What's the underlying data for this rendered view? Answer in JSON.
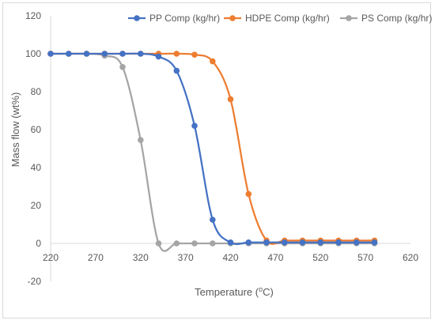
{
  "chart_data": {
    "type": "scatter",
    "title": "",
    "xlabel_main": "Temperature (",
    "xlabel_sup": "o",
    "xlabel_tail": "C)",
    "ylabel": "Mass flow (wt%)",
    "xlim": [
      220,
      620
    ],
    "ylim": [
      -20,
      120
    ],
    "x_ticks": [
      220,
      270,
      320,
      370,
      420,
      470,
      520,
      570,
      620
    ],
    "y_ticks": [
      -20,
      0,
      20,
      40,
      60,
      80,
      100,
      120
    ],
    "grid": false,
    "legend_position": "top-right",
    "series": [
      {
        "name": "PP Comp (kg/hr)",
        "color": "#4472c4",
        "x": [
          220,
          240,
          260,
          280,
          300,
          320,
          340,
          360,
          380,
          400,
          420,
          440,
          460,
          480,
          500,
          520,
          540,
          560,
          580
        ],
        "y": [
          100,
          100,
          100,
          100,
          100,
          100,
          98.5,
          91,
          62,
          12.5,
          0.5,
          0.5,
          0.5,
          0.5,
          0.5,
          0.5,
          0.5,
          0.5,
          0.5
        ]
      },
      {
        "name": "HDPE Comp (kg/hr)",
        "color": "#ed7d31",
        "x": [
          220,
          240,
          260,
          280,
          300,
          320,
          340,
          360,
          380,
          400,
          420,
          440,
          460,
          480,
          500,
          520,
          540,
          560,
          580
        ],
        "y": [
          100,
          100,
          100,
          100,
          100,
          100,
          100,
          100,
          99.5,
          96,
          76,
          26,
          1.5,
          1.5,
          1.5,
          1.5,
          1.5,
          1.5,
          1.5
        ]
      },
      {
        "name": "PS Comp (kg/hr)",
        "color": "#a5a5a5",
        "x": [
          220,
          240,
          260,
          280,
          300,
          320,
          340,
          360,
          380,
          400,
          420,
          440,
          460,
          480,
          500,
          520,
          540,
          560,
          580
        ],
        "y": [
          100,
          100,
          100,
          99,
          93,
          54.5,
          0,
          0,
          0,
          0,
          0,
          0,
          0,
          0,
          0,
          0,
          0,
          0,
          0
        ]
      }
    ]
  }
}
